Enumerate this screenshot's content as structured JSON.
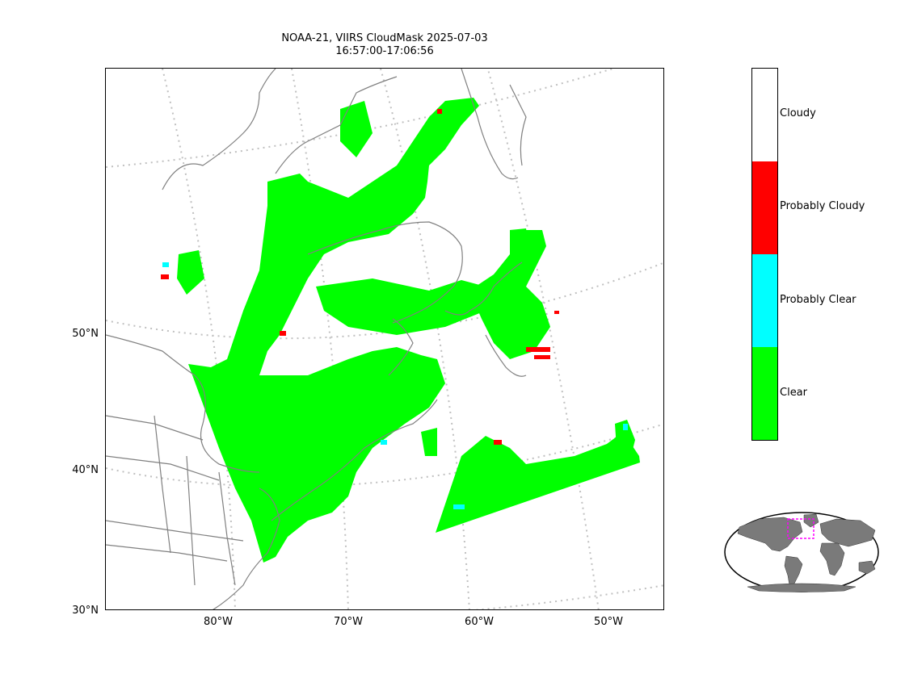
{
  "title": {
    "line1": "NOAA-21, VIIRS CloudMask 2025-07-03",
    "line2": "16:57:00-17:06:56"
  },
  "lat_labels": [
    "50°N",
    "40°N",
    "30°N"
  ],
  "lon_labels": [
    "80°W",
    "70°W",
    "60°W",
    "50°W"
  ],
  "legend": {
    "items": [
      {
        "label": "Cloudy",
        "color": "#ffffff"
      },
      {
        "label": "Probably Cloudy",
        "color": "#ff0000"
      },
      {
        "label": "Probably Clear",
        "color": "#00ffff"
      },
      {
        "label": "Clear",
        "color": "#00ff00"
      }
    ]
  },
  "colors": {
    "clear": "#00ff00",
    "coastline": "#808080",
    "graticule": "#c0c0c0",
    "inset_box": "#ff00ff",
    "inset_land": "#7a7a7a"
  },
  "icons": {
    "inset": "world-overview-globe"
  }
}
